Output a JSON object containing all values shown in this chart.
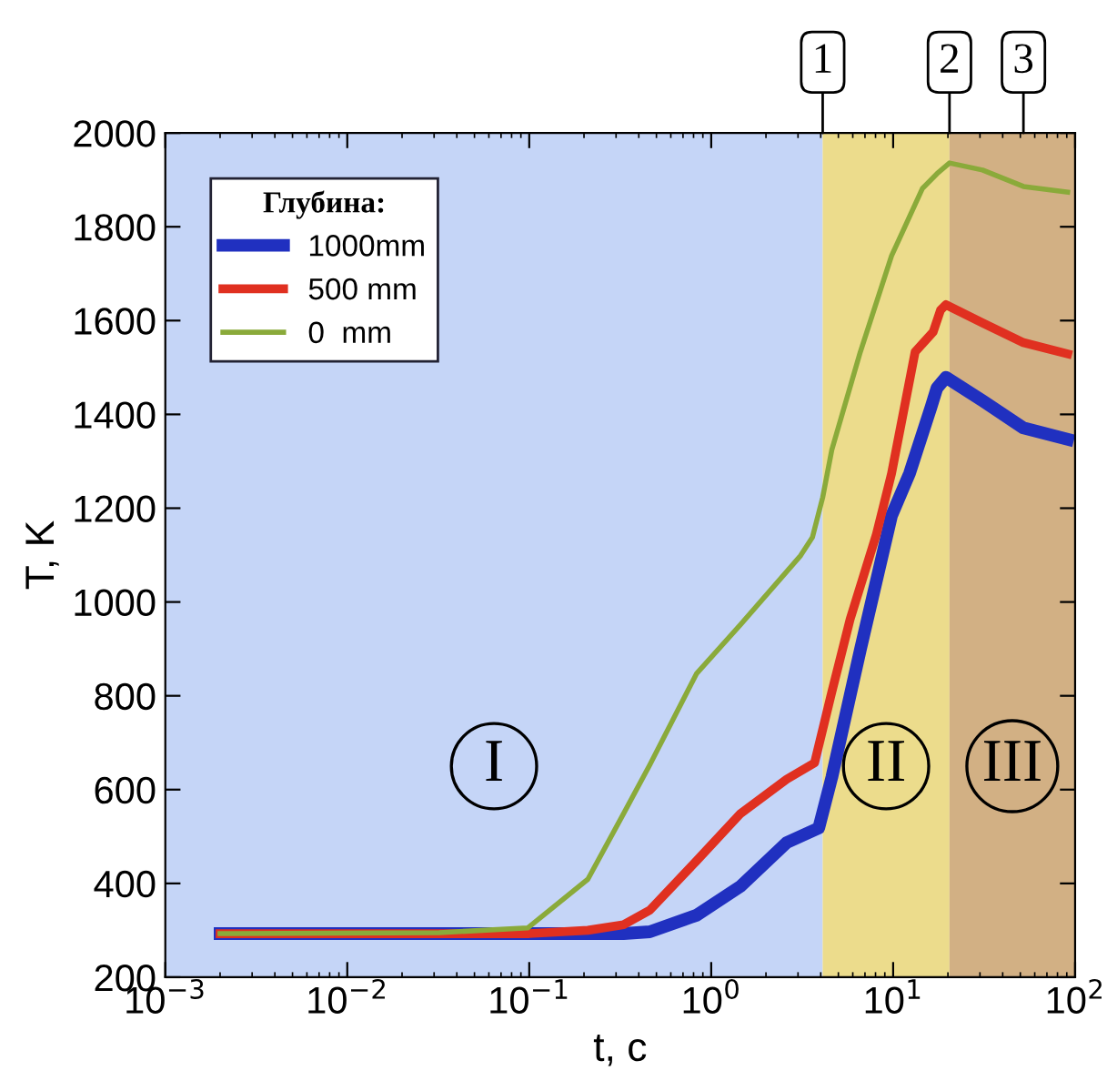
{
  "chart_data": {
    "type": "line",
    "xlabel": "t, c",
    "ylabel": "T, K",
    "legend_title": "Глубина:",
    "legend": "top left",
    "log": "x",
    "grid": false,
    "xlim": [
      0.001,
      100
    ],
    "xticks": [
      {
        "value": 0.001,
        "label": "10$^{−3}$"
      },
      {
        "value": 0.01,
        "label": "10$^{−2}$"
      },
      {
        "value": 0.1,
        "label": "10$^{−1}$"
      },
      {
        "value": 1,
        "label": "10$^{0}$"
      },
      {
        "value": 10,
        "label": "10$^{1}$"
      },
      {
        "value": 100,
        "label": "10$^{2}$"
      }
    ],
    "ylim": [
      200,
      2000
    ],
    "yticks": [
      200,
      400,
      600,
      800,
      1000,
      1200,
      1400,
      1600,
      1800,
      2000
    ],
    "bands": [
      {
        "axis": "x",
        "from": 0.001,
        "to": 4.1,
        "label": "I",
        "color": "#c5d5f7"
      },
      {
        "axis": "x",
        "from": 4.1,
        "to": 20.4,
        "label": "II",
        "color": "#ecdc8c"
      },
      {
        "axis": "x",
        "from": 20.4,
        "to": 100,
        "label": "III",
        "color": "#d2b084"
      }
    ],
    "annotations": [
      {
        "text": "1",
        "x": 4.1,
        "y": 2000
      },
      {
        "text": "2",
        "x": 20.4,
        "y": 2000
      },
      {
        "text": "3",
        "x": 52,
        "y": 2000
      }
    ],
    "series": [
      {
        "name": "1000mm",
        "color": "#2030c0",
        "x": [
          0.002,
          0.1,
          0.33,
          0.46,
          0.83,
          1.45,
          2.6,
          3.9,
          4.6,
          6.6,
          9.8,
          12.3,
          16.2,
          17.4,
          19.5,
          31,
          52,
          91
        ],
        "values": [
          293,
          293,
          293,
          297,
          332,
          394,
          487,
          518,
          626,
          898,
          1184,
          1274,
          1417,
          1456,
          1479,
          1429,
          1371,
          1347
        ]
      },
      {
        "name": "500 mm",
        "color": "#e03020",
        "x": [
          0.002,
          0.1,
          0.21,
          0.33,
          0.46,
          0.83,
          1.45,
          2.6,
          3.7,
          4.6,
          5.8,
          8.1,
          9.8,
          13.2,
          16.6,
          18.2,
          19.5,
          31,
          52,
          91
        ],
        "values": [
          293,
          293,
          300,
          312,
          343,
          448,
          549,
          622,
          657,
          808,
          963,
          1145,
          1274,
          1533,
          1576,
          1622,
          1634,
          1595,
          1553,
          1529
        ]
      },
      {
        "name": "0  mm",
        "color": "#8aaa3a",
        "x": [
          0.002,
          0.032,
          0.098,
          0.21,
          0.33,
          0.46,
          0.83,
          1.45,
          3.1,
          3.6,
          4.1,
          4.6,
          6.6,
          9.8,
          14.5,
          17.4,
          20.4,
          31,
          52,
          91
        ],
        "values": [
          293,
          295,
          305,
          409,
          549,
          653,
          847,
          952,
          1099,
          1138,
          1223,
          1324,
          1533,
          1738,
          1882,
          1913,
          1936,
          1921,
          1886,
          1874
        ]
      }
    ]
  }
}
